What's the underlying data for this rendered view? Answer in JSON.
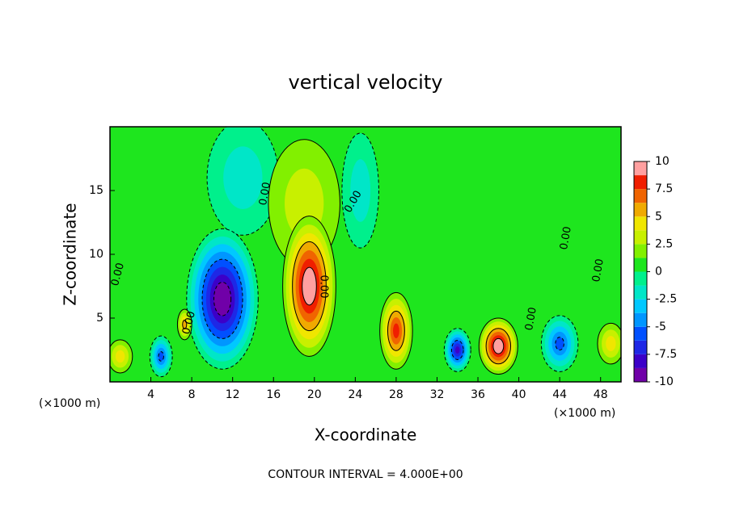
{
  "chart_data": {
    "type": "contour",
    "title": "vertical velocity",
    "x_label": "X-coordinate",
    "y_label": "Z-coordinate",
    "x_unit": "(×1000 m)",
    "footnote": "CONTOUR INTERVAL = 4.000E+00",
    "xlim": [
      0,
      50
    ],
    "xticks": [
      4,
      8,
      12,
      16,
      20,
      24,
      28,
      32,
      36,
      40,
      44,
      48
    ],
    "ylim": [
      0,
      20
    ],
    "yticks": [
      5,
      10,
      15
    ],
    "contour_labels": [
      "0.00",
      "0.00",
      "0.00",
      "0.00",
      "0.00",
      "0.00",
      "0.00",
      "0.00"
    ],
    "background_value": 0.5,
    "features": [
      {
        "x": 13,
        "z": 16,
        "rx": 3.5,
        "rz": 4.5,
        "value": -2
      },
      {
        "x": 19,
        "z": 14,
        "rx": 3.5,
        "rz": 5,
        "value": 2.5
      },
      {
        "x": 24.5,
        "z": 15,
        "rx": 1.8,
        "rz": 4.5,
        "value": -1.5
      },
      {
        "x": 11,
        "z": 6.5,
        "rx": 3.5,
        "rz": 5.5,
        "value": -10
      },
      {
        "x": 19.5,
        "z": 7.5,
        "rx": 2.6,
        "rz": 5.5,
        "value": 10
      },
      {
        "x": 28,
        "z": 4,
        "rx": 1.6,
        "rz": 3,
        "value": 7.5
      },
      {
        "x": 38,
        "z": 2.8,
        "rx": 1.9,
        "rz": 2.2,
        "value": 10
      },
      {
        "x": 34,
        "z": 2.5,
        "rx": 1.3,
        "rz": 1.7,
        "value": -7.5
      },
      {
        "x": 44,
        "z": 3,
        "rx": 1.8,
        "rz": 2.2,
        "value": -6
      },
      {
        "x": 5,
        "z": 2,
        "rx": 1.1,
        "rz": 1.6,
        "value": -5
      },
      {
        "x": 1,
        "z": 2,
        "rx": 1.2,
        "rz": 1.3,
        "value": 4
      },
      {
        "x": 7.3,
        "z": 4.5,
        "rx": 0.7,
        "rz": 1.2,
        "value": 5
      },
      {
        "x": 49,
        "z": 3,
        "rx": 1.3,
        "rz": 1.6,
        "value": 4
      }
    ],
    "colorbar": {
      "lim": [
        -10,
        10
      ],
      "ticks": [
        10,
        7.5,
        5,
        2.5,
        0,
        -2.5,
        -5,
        -7.5,
        -10
      ],
      "colors": [
        "#7000a8",
        "#3c00c8",
        "#1e28e6",
        "#0050ff",
        "#0096ff",
        "#00c8ff",
        "#00e6c8",
        "#00f08c",
        "#1ee61e",
        "#82f000",
        "#c8f000",
        "#f0e600",
        "#f0aa00",
        "#f06400",
        "#f01e00",
        "#ffa0a0"
      ]
    }
  }
}
